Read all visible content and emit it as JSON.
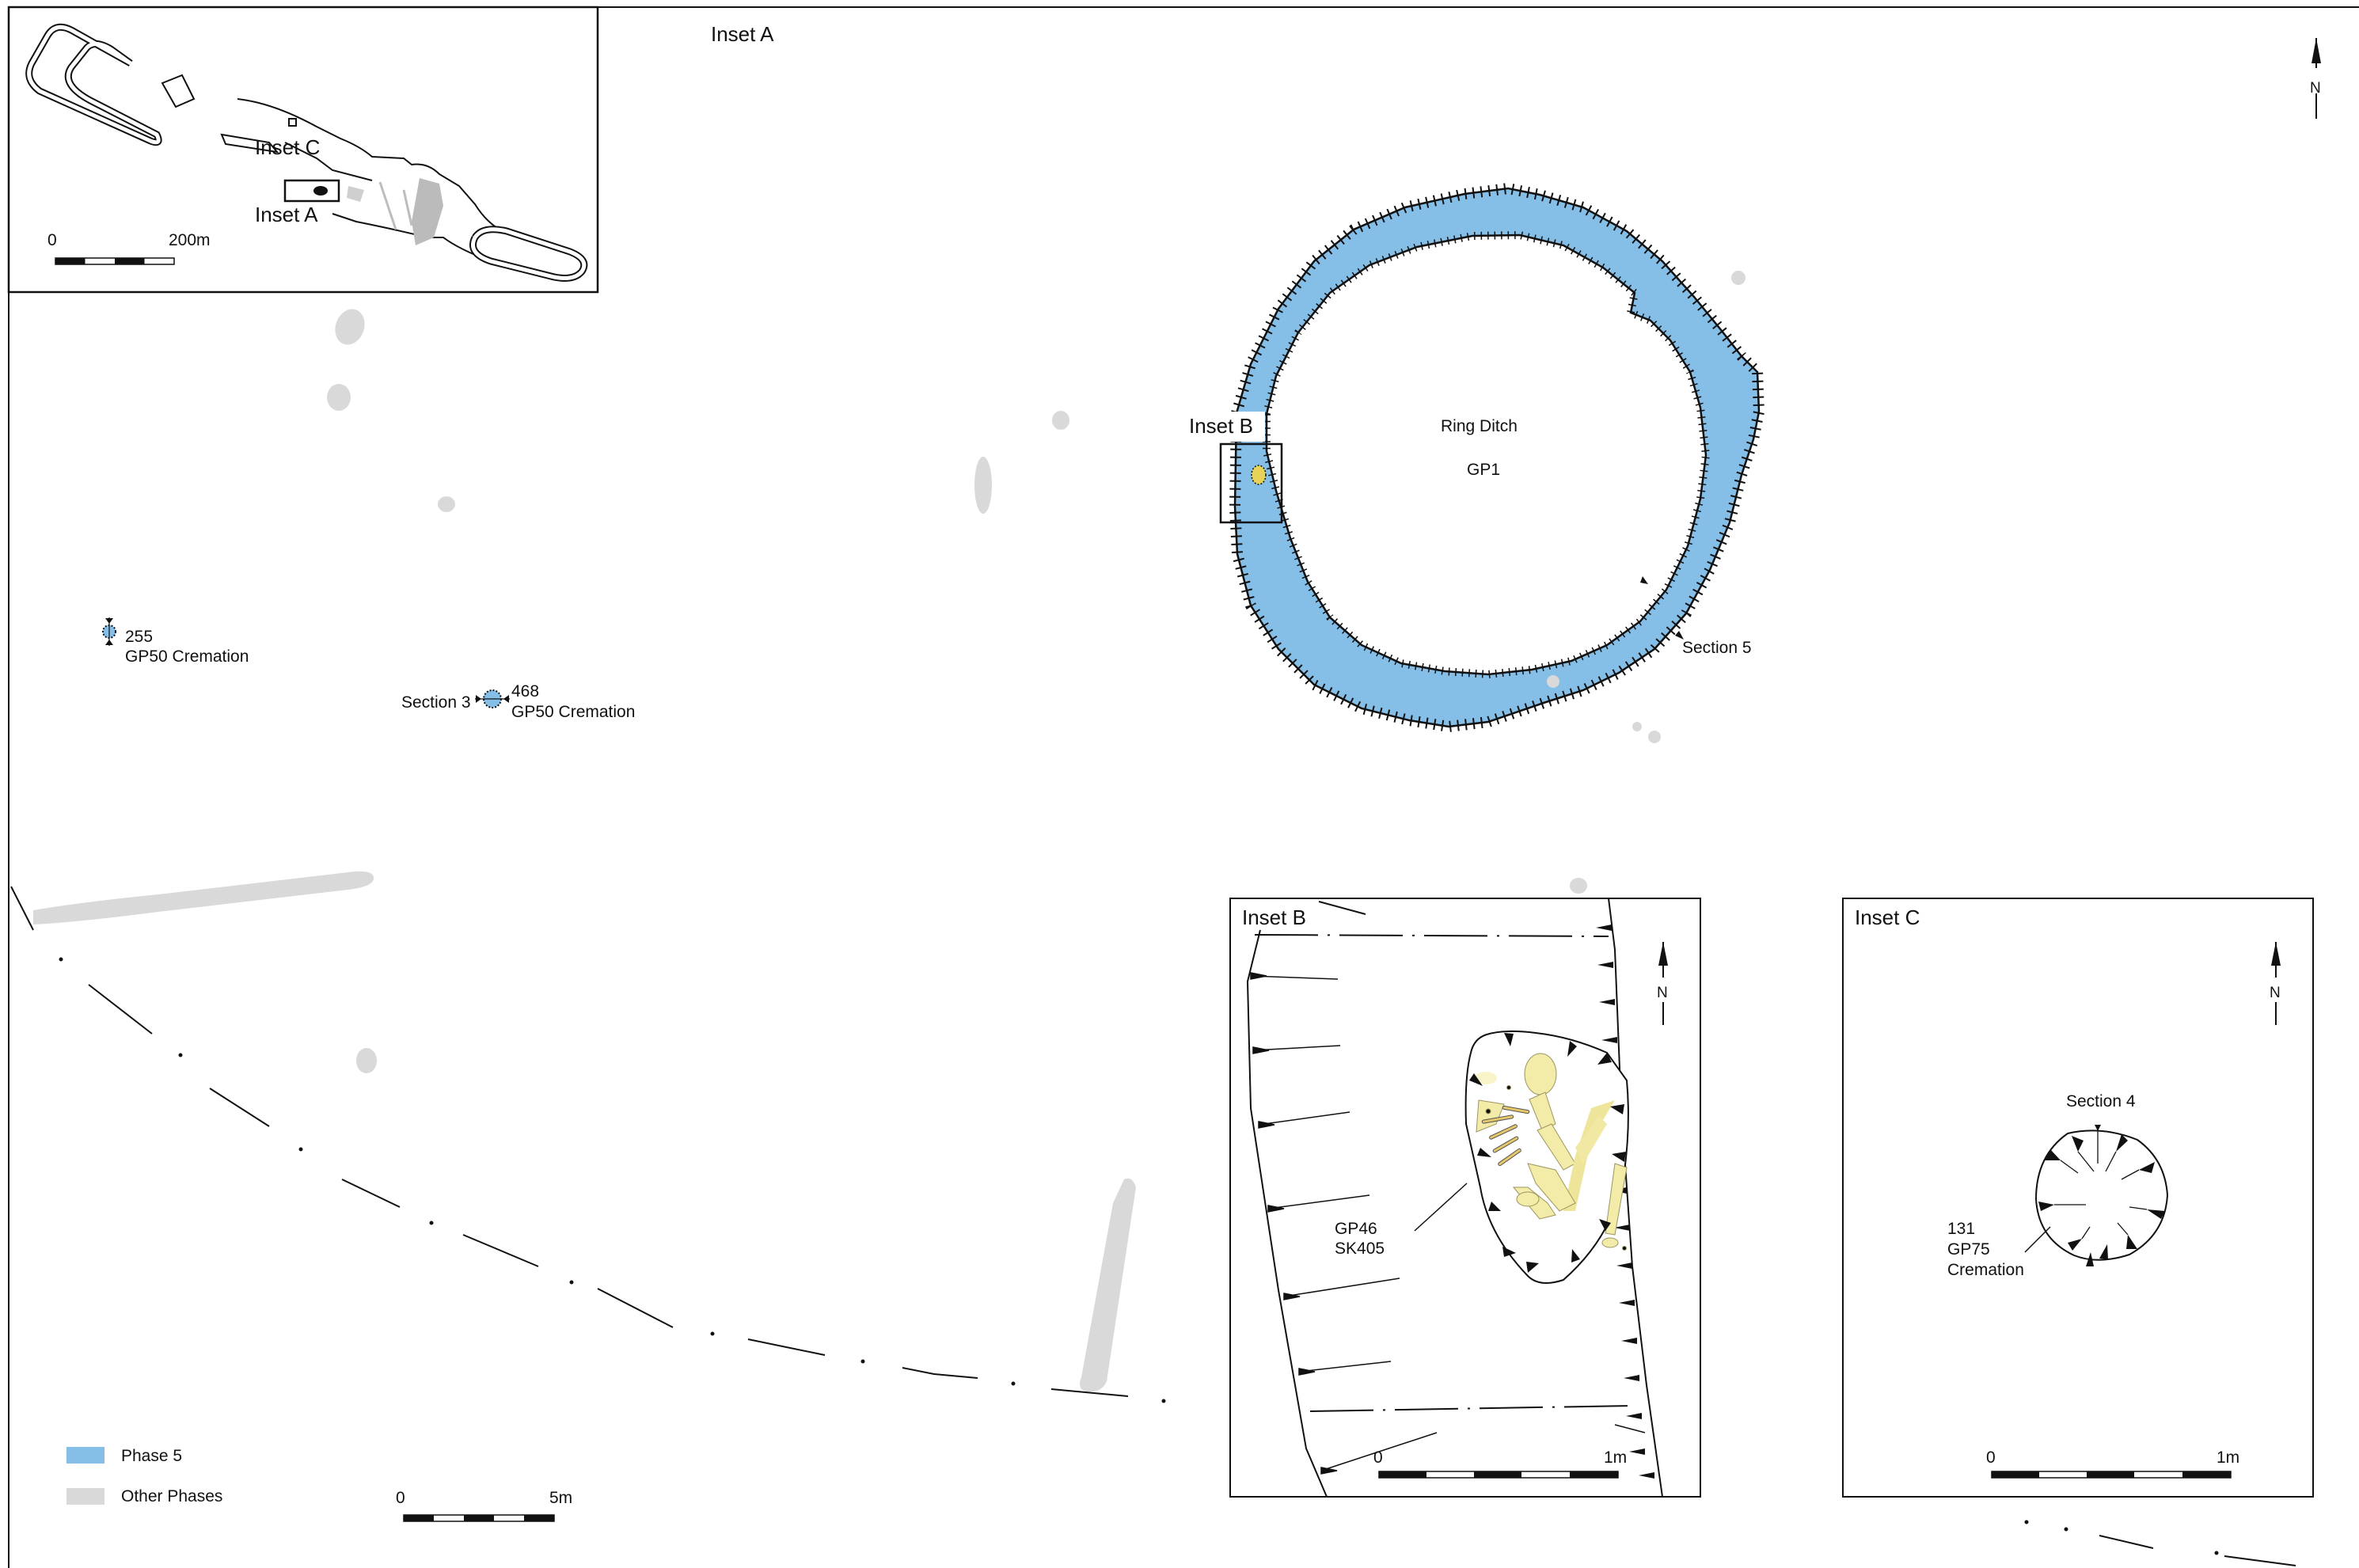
{
  "insets": {
    "main_title": "Inset A",
    "b_title": "Inset B",
    "c_title": "Inset C",
    "overview_inset_c": "Inset C",
    "overview_inset_a": "Inset A",
    "ring_inset_b": "Inset B"
  },
  "north_label": "N",
  "ring_ditch": {
    "name": "Ring Ditch",
    "group": "GP1"
  },
  "features": {
    "f255_id": "255",
    "f255_desc": "GP50 Cremation",
    "f468_id": "468",
    "f468_desc": "GP50 Cremation",
    "section3": "Section 3",
    "section5": "Section 5"
  },
  "inset_b_labels": {
    "line1": "GP46",
    "line2": "SK405"
  },
  "inset_c_labels": {
    "section4": "Section 4",
    "line1": "131",
    "line2": "GP75",
    "line3": "Cremation"
  },
  "scale_bars": {
    "overview": {
      "start": "0",
      "end": "200m"
    },
    "main": {
      "start": "0",
      "end": "5m"
    },
    "inset_b": {
      "start": "0",
      "end": "1m"
    },
    "inset_c": {
      "start": "0",
      "end": "1m"
    }
  },
  "legend": [
    {
      "label": "Phase 5",
      "color": "#85bfe8"
    },
    {
      "label": "Other Phases",
      "color": "#d9d9d9"
    }
  ],
  "colors": {
    "phase5": "#85bfe8",
    "other_phases": "#d9d9d9",
    "skeleton": "#f3eba8"
  }
}
